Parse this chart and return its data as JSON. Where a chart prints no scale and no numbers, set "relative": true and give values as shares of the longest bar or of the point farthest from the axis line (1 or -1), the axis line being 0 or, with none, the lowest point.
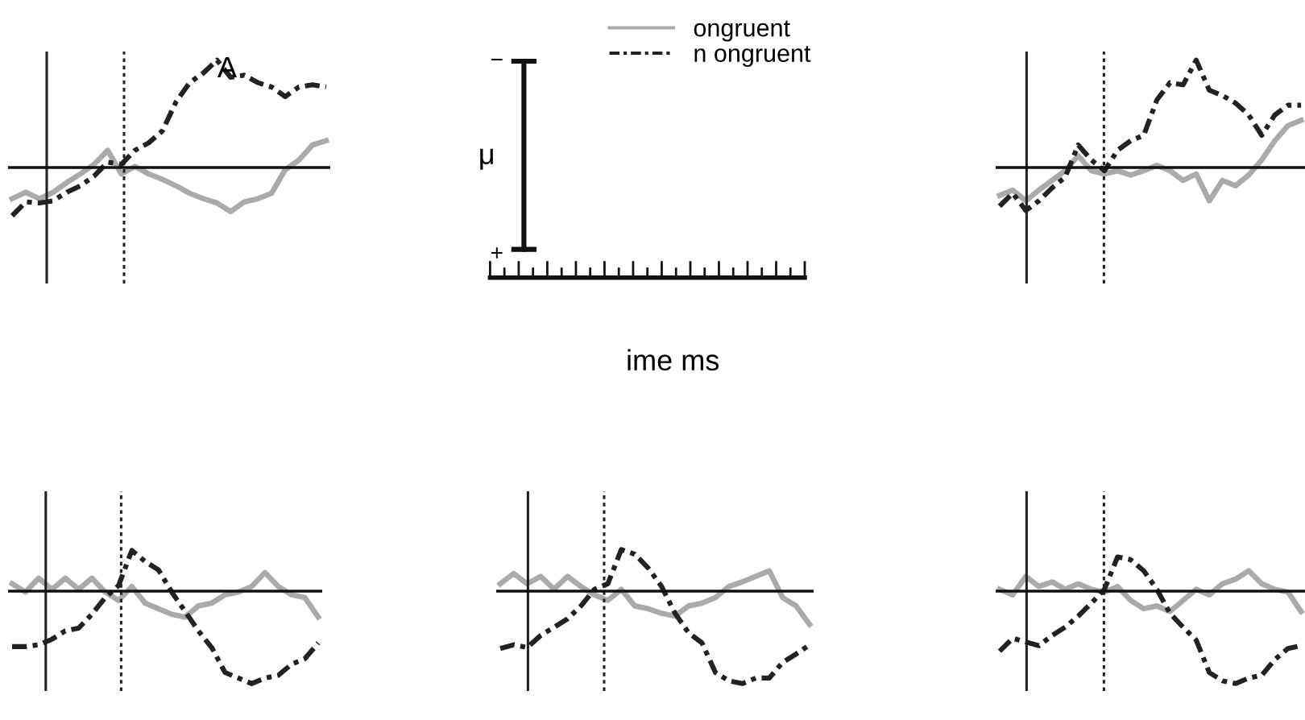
{
  "chart_data": [
    {
      "type": "line",
      "relative": true,
      "categories": [
        null,
        null,
        null,
        null,
        null,
        null,
        null,
        null,
        null,
        null,
        null,
        null,
        null,
        null,
        null,
        null,
        null,
        null,
        null,
        null,
        null,
        null,
        null,
        null
      ],
      "legend": "right",
      "annotations": [
        "A"
      ],
      "series": [
        {
          "name": "ongruent",
          "color": "#aaaaaa",
          "line_style": "solid",
          "values": [
            -0.29,
            -0.23,
            -0.29,
            -0.23,
            -0.14,
            -0.06,
            0.03,
            0.16,
            -0.06,
            0.01,
            -0.06,
            -0.11,
            -0.17,
            -0.24,
            -0.29,
            -0.33,
            -0.41,
            -0.32,
            -0.29,
            -0.24,
            -0.02,
            0.07,
            0.21,
            0.25
          ]
        },
        {
          "name": "n ongruent",
          "color": "#222222",
          "line_style": "dashed",
          "values": [
            -0.45,
            -0.32,
            -0.33,
            -0.31,
            -0.23,
            -0.17,
            -0.08,
            0.05,
            0.03,
            0.16,
            0.23,
            0.34,
            0.61,
            0.79,
            0.88,
            1,
            0.84,
            0.86,
            0.79,
            0.75,
            0.66,
            0.75,
            0.77,
            0.75
          ]
        }
      ]
    },
    {
      "type": "other",
      "ylabel": "μ",
      "xlabel": "ime ms",
      "annotations": [
        "−",
        "+"
      ]
    },
    {
      "type": "line",
      "relative": true,
      "categories": [
        null,
        null,
        null,
        null,
        null,
        null,
        null,
        null,
        null,
        null,
        null,
        null,
        null,
        null,
        null,
        null,
        null,
        null,
        null,
        null,
        null,
        null,
        null,
        null
      ],
      "series": [
        {
          "color": "#aaaaaa",
          "line_style": "solid",
          "values": [
            -0.26,
            -0.21,
            -0.31,
            -0.21,
            -0.12,
            -0.03,
            0.11,
            -0.03,
            -0.06,
            -0.03,
            -0.07,
            -0.03,
            0.02,
            -0.03,
            -0.12,
            -0.06,
            -0.31,
            -0.12,
            -0.17,
            -0.07,
            0.07,
            0.25,
            0.39,
            0.44
          ]
        },
        {
          "color": "#222222",
          "line_style": "dashed",
          "values": [
            -0.36,
            -0.24,
            -0.4,
            -0.31,
            -0.19,
            -0.09,
            0.21,
            0.07,
            -0.03,
            0.16,
            0.25,
            0.3,
            0.63,
            0.79,
            0.77,
            1,
            0.72,
            0.67,
            0.6,
            0.49,
            0.3,
            0.49,
            0.58,
            0.58
          ]
        }
      ]
    },
    {
      "type": "line",
      "relative": true,
      "categories": [
        null,
        null,
        null,
        null,
        null,
        null,
        null,
        null,
        null,
        null,
        null,
        null,
        null,
        null,
        null,
        null,
        null,
        null,
        null,
        null,
        null,
        null,
        null,
        null
      ],
      "series": [
        {
          "color": "#aaaaaa",
          "line_style": "solid",
          "values": [
            0.08,
            -0.01,
            0.14,
            0.02,
            0.14,
            0.02,
            0.14,
            -0.01,
            -0.1,
            0.05,
            -0.13,
            -0.19,
            -0.25,
            -0.28,
            -0.16,
            -0.13,
            -0.04,
            -0.01,
            0.05,
            0.2,
            0.05,
            -0.04,
            -0.07,
            -0.28
          ]
        },
        {
          "color": "#222222",
          "line_style": "dashed",
          "values": [
            -0.6,
            -0.6,
            -0.58,
            -0.52,
            -0.43,
            -0.4,
            -0.25,
            -0.07,
            0.06,
            0.44,
            0.32,
            0.23,
            -0.01,
            -0.22,
            -0.43,
            -0.61,
            -0.88,
            -0.94,
            -1,
            -0.94,
            -0.91,
            -0.79,
            -0.73,
            -0.56
          ]
        }
      ]
    },
    {
      "type": "line",
      "relative": true,
      "categories": [
        null,
        null,
        null,
        null,
        null,
        null,
        null,
        null,
        null,
        null,
        null,
        null,
        null,
        null,
        null,
        null,
        null,
        null,
        null,
        null,
        null,
        null,
        null,
        null
      ],
      "series": [
        {
          "color": "#aaaaaa",
          "line_style": "solid",
          "values": [
            0.08,
            0.19,
            0.08,
            0.16,
            0.02,
            0.16,
            0.05,
            -0.04,
            -0.1,
            0.02,
            -0.16,
            -0.19,
            -0.24,
            -0.27,
            -0.16,
            -0.13,
            -0.07,
            0.05,
            0.1,
            0.16,
            0.22,
            -0.07,
            -0.16,
            -0.36
          ]
        },
        {
          "color": "#222222",
          "line_style": "dashed",
          "values": [
            -0.62,
            -0.58,
            -0.61,
            -0.48,
            -0.39,
            -0.3,
            -0.16,
            0.02,
            0.08,
            0.45,
            0.4,
            0.25,
            0.05,
            -0.24,
            -0.45,
            -0.56,
            -0.88,
            -0.97,
            -1,
            -0.94,
            -0.94,
            -0.77,
            -0.68,
            -0.58
          ]
        }
      ]
    },
    {
      "type": "line",
      "relative": true,
      "categories": [
        null,
        null,
        null,
        null,
        null,
        null,
        null,
        null,
        null,
        null,
        null,
        null,
        null,
        null,
        null,
        null,
        null,
        null,
        null,
        null,
        null,
        null,
        null,
        null
      ],
      "series": [
        {
          "color": "#aaaaaa",
          "line_style": "solid",
          "values": [
            0.02,
            -0.04,
            0.16,
            0.05,
            0.1,
            0.02,
            0.08,
            0.02,
            -0.01,
            0.05,
            -0.1,
            -0.19,
            -0.16,
            -0.22,
            -0.1,
            0.02,
            -0.04,
            0.08,
            0.13,
            0.22,
            0.08,
            0.02,
            -0.01,
            -0.22
          ]
        },
        {
          "color": "#222222",
          "line_style": "dashed",
          "values": [
            -0.65,
            -0.51,
            -0.55,
            -0.59,
            -0.48,
            -0.39,
            -0.27,
            -0.13,
            0.02,
            0.37,
            0.34,
            0.22,
            0.02,
            -0.24,
            -0.39,
            -0.53,
            -0.88,
            -0.97,
            -1,
            -0.94,
            -0.91,
            -0.74,
            -0.62,
            -0.59
          ]
        }
      ]
    }
  ]
}
